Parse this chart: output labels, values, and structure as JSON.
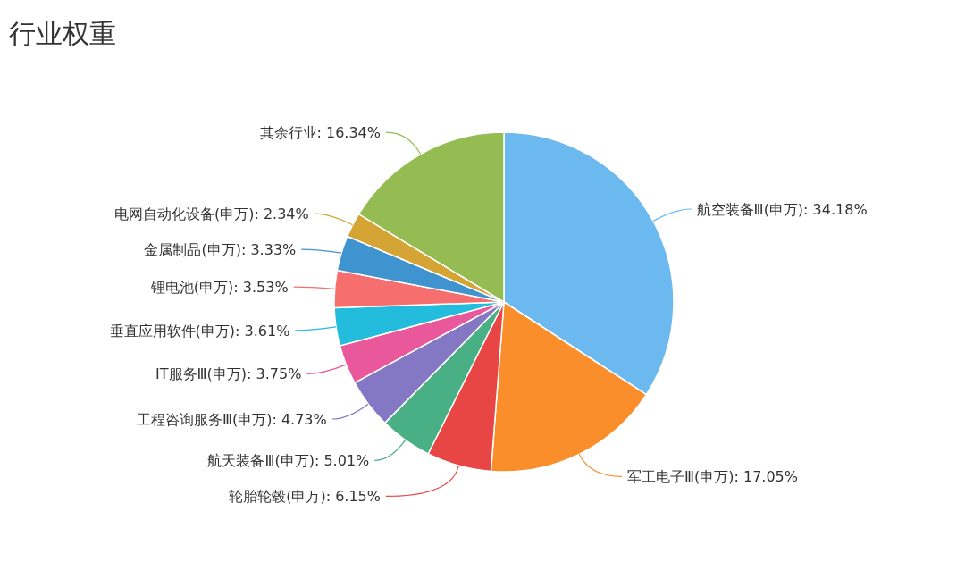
{
  "chart_data": {
    "type": "pie",
    "title": "行业权重",
    "categories": [
      "航空装备Ⅲ(申万)",
      "军工电子Ⅲ(申万)",
      "轮胎轮毂(申万)",
      "航天装备Ⅲ(申万)",
      "工程咨询服务Ⅲ(申万)",
      "IT服务Ⅲ(申万)",
      "垂直应用软件(申万)",
      "锂电池(申万)",
      "金属制品(申万)",
      "电网自动化设备(申万)",
      "其余行业"
    ],
    "values": [
      34.18,
      17.05,
      6.15,
      5.01,
      4.73,
      3.75,
      3.61,
      3.53,
      3.33,
      2.34,
      16.34
    ],
    "colors": [
      "#6cb9f0",
      "#f98e2b",
      "#e84545",
      "#48b084",
      "#8477c4",
      "#e8589a",
      "#24bcdc",
      "#f66e6e",
      "#3f94cf",
      "#d4a434",
      "#94bc52"
    ],
    "value_labels": [
      "34.18%",
      "17.05%",
      "6.15%",
      "5.01%",
      "4.73%",
      "3.75%",
      "3.61%",
      "3.53%",
      "3.33%",
      "2.34%",
      "16.34%"
    ]
  }
}
